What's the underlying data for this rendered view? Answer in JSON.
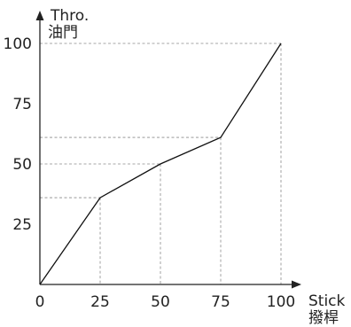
{
  "chart_data": {
    "type": "line",
    "xlabel": "Stick",
    "xlabel_alt": "撥桿",
    "ylabel": "Thro.",
    "ylabel_alt": "油門",
    "xlim": [
      0,
      100
    ],
    "ylim": [
      0,
      100
    ],
    "x_ticks": [
      "0",
      "25",
      "50",
      "75",
      "100"
    ],
    "y_ticks": [
      "25",
      "50",
      "75",
      "100"
    ],
    "grid": false,
    "guide_lines": "dashed",
    "series": [
      {
        "x": [
          0,
          25,
          50,
          75,
          100
        ],
        "y": [
          0,
          36,
          50,
          61,
          100
        ]
      }
    ]
  }
}
